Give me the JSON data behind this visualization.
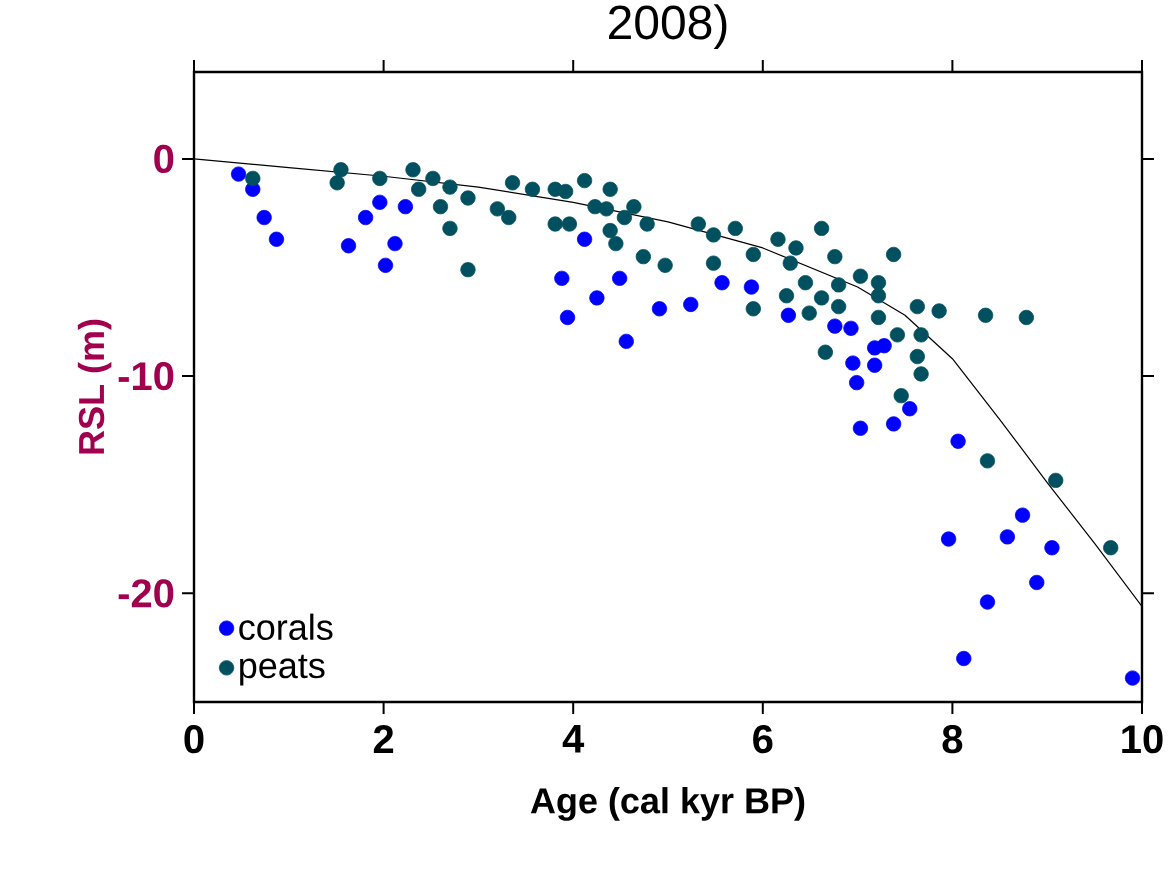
{
  "chart_data": {
    "type": "scatter",
    "title": "2008)",
    "xlabel": "Age (cal kyr BP)",
    "ylabel": "RSL (m)",
    "xlim": [
      0,
      10
    ],
    "ylim": [
      -25,
      4
    ],
    "xticks": [
      0,
      2,
      4,
      6,
      8,
      10
    ],
    "yticks": [
      0,
      -10,
      -20
    ],
    "grid": false,
    "legend": "bottom left",
    "marker": "circle",
    "series": [
      {
        "name": "corals",
        "color": "#0000ff",
        "x": [
          0.47,
          0.62,
          0.74,
          0.87,
          1.63,
          1.81,
          1.96,
          2.23,
          2.12,
          2.02,
          3.88,
          3.94,
          4.25,
          4.49,
          4.56,
          4.91,
          4.12,
          5.24,
          5.57,
          5.88,
          6.27,
          6.76,
          6.93,
          7.18,
          7.28,
          6.95,
          7.18,
          6.99,
          7.55,
          7.03,
          7.38,
          8.06,
          7.96,
          8.58,
          8.74,
          9.05,
          8.89,
          8.37,
          8.12,
          9.9
        ],
        "values": [
          -0.7,
          -1.4,
          -2.7,
          -3.7,
          -4.0,
          -2.7,
          -2.0,
          -2.2,
          -3.9,
          -4.9,
          -5.5,
          -7.3,
          -6.4,
          -5.5,
          -8.4,
          -6.9,
          -3.7,
          -6.7,
          -5.7,
          -5.9,
          -7.2,
          -7.7,
          -7.8,
          -8.7,
          -8.6,
          -9.4,
          -9.5,
          -10.3,
          -11.5,
          -12.4,
          -12.2,
          -13.0,
          -17.5,
          -17.4,
          -16.4,
          -17.9,
          -19.5,
          -20.4,
          -23.0,
          -23.9
        ]
      },
      {
        "name": "peats",
        "color": "#005060",
        "x": [
          0.62,
          1.55,
          1.51,
          1.96,
          2.31,
          2.52,
          2.37,
          2.7,
          2.89,
          2.6,
          2.7,
          2.89,
          3.2,
          3.32,
          3.36,
          3.57,
          3.81,
          3.92,
          4.12,
          4.23,
          3.81,
          3.96,
          4.39,
          4.35,
          4.54,
          4.64,
          4.39,
          4.45,
          4.78,
          4.74,
          4.97,
          5.32,
          5.48,
          5.71,
          5.48,
          5.9,
          5.9,
          6.16,
          6.35,
          6.29,
          6.62,
          6.76,
          6.45,
          6.25,
          6.49,
          6.62,
          6.8,
          7.03,
          7.22,
          7.22,
          7.38,
          6.8,
          7.22,
          7.42,
          7.63,
          7.86,
          8.35,
          8.78,
          7.67,
          7.63,
          7.67,
          6.66,
          7.46,
          8.37,
          9.09,
          9.67
        ],
        "values": [
          -0.9,
          -0.5,
          -1.1,
          -0.9,
          -0.5,
          -0.9,
          -1.4,
          -1.3,
          -1.8,
          -2.2,
          -3.2,
          -5.1,
          -2.3,
          -2.7,
          -1.1,
          -1.4,
          -1.4,
          -1.5,
          -1.0,
          -2.2,
          -3.0,
          -3.0,
          -1.4,
          -2.3,
          -2.7,
          -2.2,
          -3.3,
          -3.9,
          -3.0,
          -4.5,
          -4.9,
          -3.0,
          -3.5,
          -3.2,
          -4.8,
          -4.4,
          -6.9,
          -3.7,
          -4.1,
          -4.8,
          -3.2,
          -4.5,
          -5.7,
          -6.3,
          -7.1,
          -6.4,
          -5.8,
          -5.4,
          -5.7,
          -6.3,
          -4.4,
          -6.8,
          -7.3,
          -8.1,
          -6.8,
          -7.0,
          -7.2,
          -7.3,
          -8.1,
          -9.1,
          -9.9,
          -8.9,
          -10.9,
          -13.9,
          -14.8,
          -17.9
        ]
      },
      {
        "type": "line",
        "color": "#000000",
        "marker": "none",
        "x": [
          0,
          1,
          2,
          3,
          4,
          5,
          6,
          7,
          7.5,
          8,
          8.5,
          9,
          9.5,
          10
        ],
        "values": [
          0,
          -0.4,
          -0.8,
          -1.3,
          -2.0,
          -2.9,
          -4.1,
          -5.9,
          -7.2,
          -9.2,
          -12.0,
          -14.9,
          -17.7,
          -20.6
        ]
      }
    ]
  }
}
